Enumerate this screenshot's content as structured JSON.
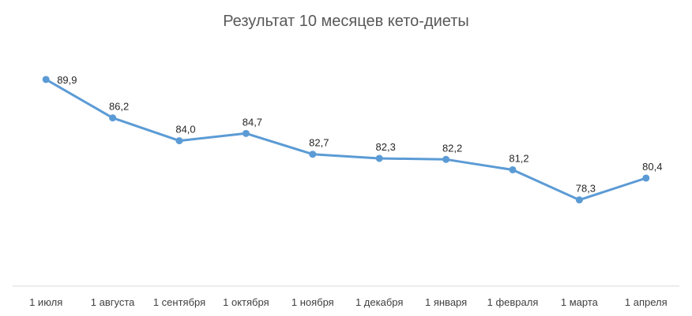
{
  "chart_data": {
    "type": "line",
    "title": "Результат 10 месяцев кето-диеты",
    "xlabel": "",
    "ylabel": "",
    "categories": [
      "1 июля",
      "1 августа",
      "1 сентября",
      "1 октября",
      "1 ноября",
      "1 декабря",
      "1 января",
      "1 февраля",
      "1 марта",
      "1 апреля"
    ],
    "series": [
      {
        "values": [
          89.9,
          86.2,
          84.0,
          84.7,
          82.7,
          82.3,
          82.2,
          81.2,
          78.3,
          80.4
        ],
        "labels": [
          "89,9",
          "86,2",
          "84,0",
          "84,7",
          "82,7",
          "82,3",
          "82,2",
          "81,2",
          "78,3",
          "80,4"
        ],
        "color": "#5b9bd5"
      }
    ],
    "ylim": [
      70,
      93
    ],
    "grid": false,
    "legend": "none",
    "axis_color": "#d9d9d9"
  }
}
